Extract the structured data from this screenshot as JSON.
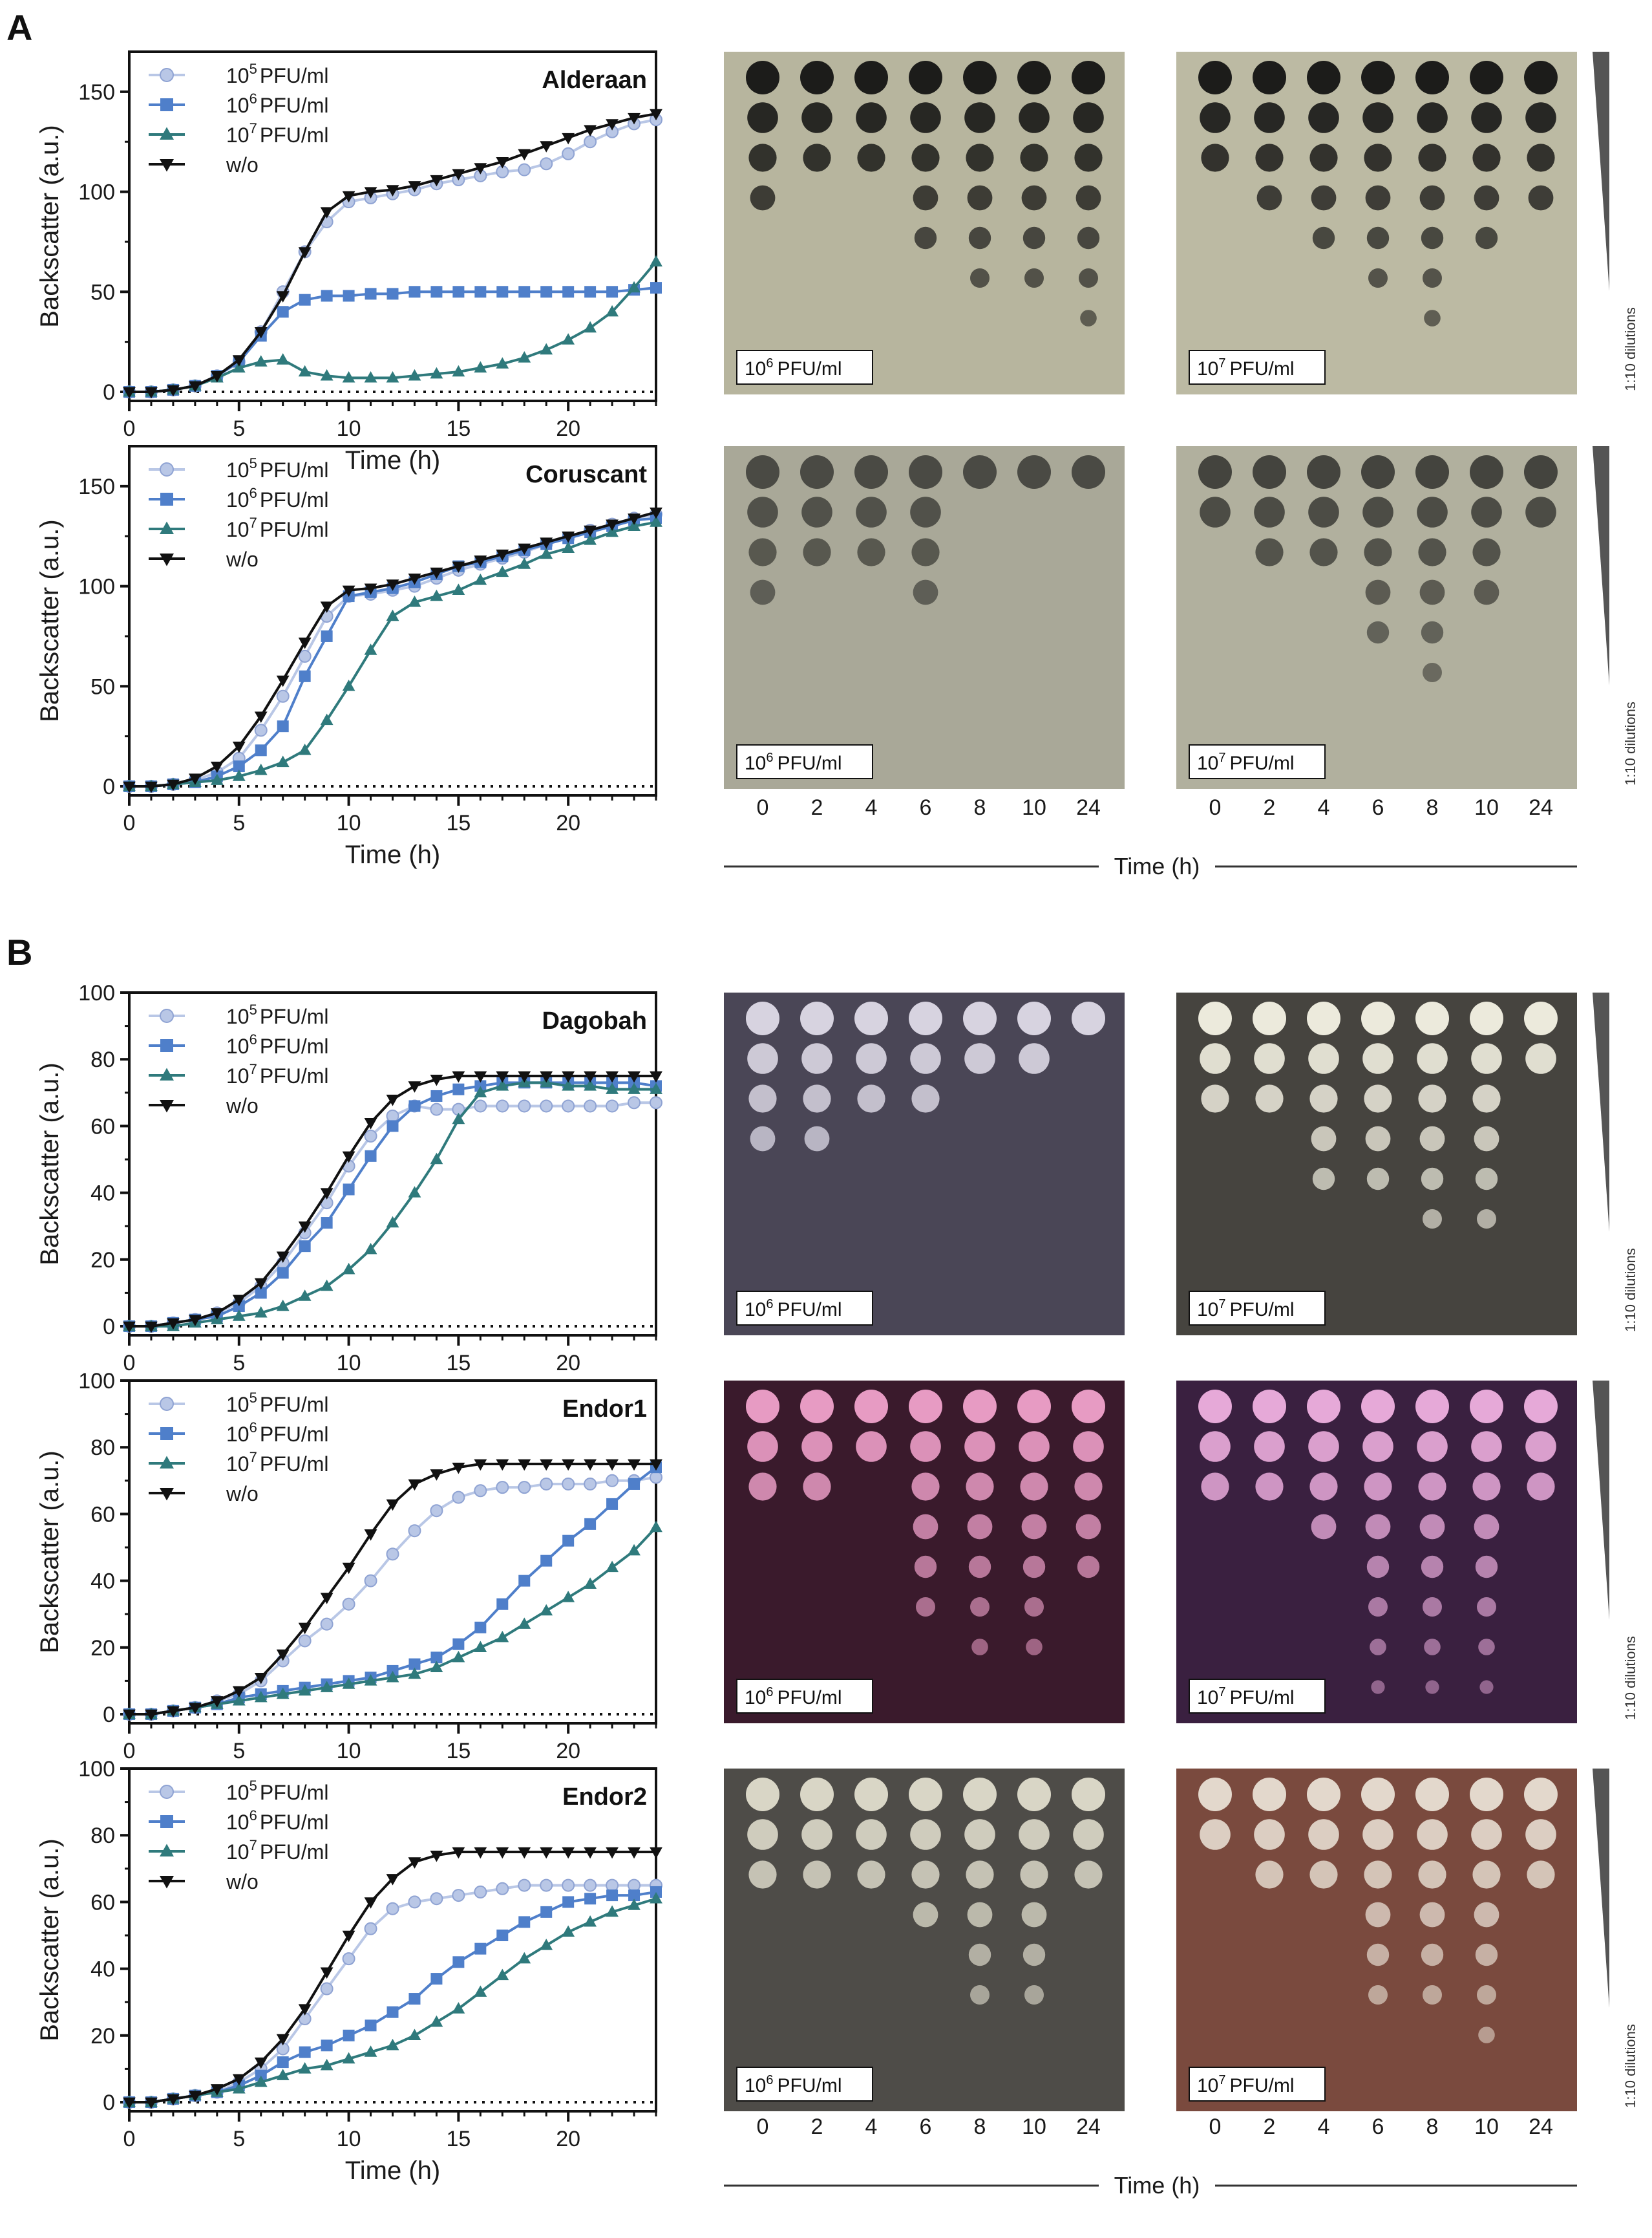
{
  "figure": {
    "panels": [
      "A",
      "B"
    ],
    "plate_time_ticks": [
      "0",
      "2",
      "4",
      "6",
      "8",
      "10",
      "24"
    ],
    "plate_time_label": "Time (h)",
    "dilution_label": "1:10 dilutions",
    "plate_caption_prefix": [
      "10",
      "10"
    ],
    "plate_caption_exponents": [
      "6",
      "7"
    ],
    "plate_caption_suffix": "PFU/ml",
    "plates": [
      {
        "panel": "A",
        "row": 0,
        "titer": "10^6 PFU/ml",
        "agar": "yellowish-gray",
        "spots": "dark plaques",
        "bg": "#b7b59e",
        "spot": "#1c1c1a"
      },
      {
        "panel": "A",
        "row": 0,
        "titer": "10^7 PFU/ml",
        "agar": "yellowish-gray",
        "spots": "dark plaques",
        "bg": "#bcbaa3",
        "spot": "#1c1c1a"
      },
      {
        "panel": "A",
        "row": 1,
        "titer": "10^6 PFU/ml",
        "agar": "gray",
        "spots": "faint plaques",
        "bg": "#a9a898",
        "spot": "#4a4a44"
      },
      {
        "panel": "A",
        "row": 1,
        "titer": "10^7 PFU/ml",
        "agar": "gray",
        "spots": "faint plaques",
        "bg": "#b1b09e",
        "spot": "#44443e"
      },
      {
        "panel": "B",
        "row": 0,
        "titer": "10^6 PFU/ml",
        "agar": "dark purple-gray",
        "spots": "light plaques",
        "bg": "#4a4656",
        "spot": "#d7d3e0"
      },
      {
        "panel": "B",
        "row": 0,
        "titer": "10^7 PFU/ml",
        "agar": "dark gray",
        "spots": "light plaques",
        "bg": "#46443f",
        "spot": "#eceadc"
      },
      {
        "panel": "B",
        "row": 1,
        "titer": "10^6 PFU/ml",
        "agar": "dark red-purple",
        "spots": "pink plaques",
        "bg": "#3a1a2c",
        "spot": "#e79bc3"
      },
      {
        "panel": "B",
        "row": 1,
        "titer": "10^7 PFU/ml",
        "agar": "dark purple",
        "spots": "pink plaques",
        "bg": "#3a2040",
        "spot": "#e6a9d8"
      },
      {
        "panel": "B",
        "row": 2,
        "titer": "10^6 PFU/ml",
        "agar": "dark gray",
        "spots": "light plaques",
        "bg": "#4e4c48",
        "spot": "#d9d6c6"
      },
      {
        "panel": "B",
        "row": 2,
        "titer": "10^7 PFU/ml",
        "agar": "reddish-brown",
        "spots": "light plaques",
        "bg": "#7a4a3e",
        "spot": "#e3d8cc"
      }
    ],
    "colors": {
      "s1": "#b9c7e6",
      "s2": "#4f7fca",
      "s3": "#2f7a7c",
      "s4": "#111111"
    },
    "markers": {
      "s1": "circle",
      "s2": "square",
      "s3": "triangle-up",
      "s4": "triangle-down"
    }
  },
  "chart_data": [
    {
      "type": "line",
      "panel": "A",
      "title": "Alderaan",
      "xlabel": "Time (h)",
      "ylabel": "Backscatter (a.u.)",
      "xlim": [
        0,
        24
      ],
      "ylim": [
        0,
        170
      ],
      "xticks": [
        0,
        5,
        10,
        15,
        20
      ],
      "yticks": [
        0,
        50,
        100,
        150
      ],
      "legend_position": "top-left",
      "baseline": "dotted at 0",
      "x": [
        0,
        1,
        2,
        3,
        4,
        5,
        6,
        7,
        8,
        9,
        10,
        11,
        12,
        13,
        14,
        15,
        16,
        17,
        18,
        19,
        20,
        21,
        22,
        23,
        24
      ],
      "series": [
        {
          "name": "10^5 PFU/ml",
          "key": "s1",
          "values": [
            0,
            0,
            1,
            3,
            8,
            15,
            30,
            50,
            70,
            85,
            95,
            97,
            99,
            101,
            104,
            106,
            108,
            110,
            111,
            114,
            119,
            125,
            130,
            134,
            136
          ]
        },
        {
          "name": "10^6 PFU/ml",
          "key": "s2",
          "values": [
            0,
            0,
            1,
            3,
            8,
            15,
            28,
            40,
            46,
            48,
            48,
            49,
            49,
            50,
            50,
            50,
            50,
            50,
            50,
            50,
            50,
            50,
            50,
            51,
            52
          ]
        },
        {
          "name": "10^7 PFU/ml",
          "key": "s3",
          "values": [
            0,
            0,
            1,
            3,
            7,
            12,
            15,
            16,
            10,
            8,
            7,
            7,
            7,
            8,
            9,
            10,
            12,
            14,
            17,
            21,
            26,
            32,
            40,
            52,
            65
          ]
        },
        {
          "name": "w/o",
          "key": "s4",
          "values": [
            0,
            0,
            1,
            3,
            8,
            16,
            30,
            48,
            70,
            90,
            98,
            100,
            101,
            103,
            106,
            109,
            112,
            115,
            119,
            123,
            127,
            131,
            134,
            137,
            139
          ]
        }
      ]
    },
    {
      "type": "line",
      "panel": "A",
      "title": "Coruscant",
      "xlabel": "Time (h)",
      "ylabel": "Backscatter (a.u.)",
      "xlim": [
        0,
        24
      ],
      "ylim": [
        0,
        170
      ],
      "xticks": [
        0,
        5,
        10,
        15,
        20
      ],
      "yticks": [
        0,
        50,
        100,
        150
      ],
      "legend_position": "top-left",
      "baseline": "dotted at 0",
      "x": [
        0,
        1,
        2,
        3,
        4,
        5,
        6,
        7,
        8,
        9,
        10,
        11,
        12,
        13,
        14,
        15,
        16,
        17,
        18,
        19,
        20,
        21,
        22,
        23,
        24
      ],
      "series": [
        {
          "name": "10^5 PFU/ml",
          "key": "s1",
          "values": [
            0,
            0,
            1,
            3,
            7,
            14,
            28,
            45,
            65,
            85,
            95,
            96,
            98,
            100,
            104,
            108,
            111,
            114,
            117,
            121,
            124,
            128,
            131,
            134,
            136
          ]
        },
        {
          "name": "10^6 PFU/ml",
          "key": "s2",
          "values": [
            0,
            0,
            1,
            2,
            5,
            10,
            18,
            30,
            55,
            75,
            95,
            97,
            99,
            102,
            106,
            110,
            112,
            115,
            118,
            121,
            124,
            127,
            130,
            133,
            134
          ]
        },
        {
          "name": "10^7 PFU/ml",
          "key": "s3",
          "values": [
            0,
            0,
            1,
            2,
            3,
            5,
            8,
            12,
            18,
            33,
            50,
            68,
            85,
            92,
            95,
            98,
            103,
            107,
            111,
            116,
            119,
            123,
            127,
            130,
            132
          ]
        },
        {
          "name": "w/o",
          "key": "s4",
          "values": [
            0,
            0,
            1,
            4,
            10,
            20,
            35,
            53,
            72,
            90,
            98,
            99,
            101,
            104,
            107,
            110,
            113,
            116,
            119,
            122,
            125,
            128,
            131,
            134,
            137
          ]
        }
      ]
    },
    {
      "type": "line",
      "panel": "B",
      "title": "Dagobah",
      "xlabel": "",
      "ylabel": "Backscatter (a.u.)",
      "xlim": [
        0,
        24
      ],
      "ylim": [
        0,
        100
      ],
      "xticks": [
        0,
        5,
        10,
        15,
        20
      ],
      "yticks": [
        0,
        20,
        40,
        60,
        80,
        100
      ],
      "legend_position": "top-left",
      "baseline": "dotted at 0",
      "x": [
        0,
        1,
        2,
        3,
        4,
        5,
        6,
        7,
        8,
        9,
        10,
        11,
        12,
        13,
        14,
        15,
        16,
        17,
        18,
        19,
        20,
        21,
        22,
        23,
        24
      ],
      "series": [
        {
          "name": "10^5 PFU/ml",
          "key": "s1",
          "values": [
            0,
            0,
            1,
            2,
            4,
            7,
            12,
            19,
            28,
            37,
            48,
            57,
            63,
            66,
            65,
            65,
            66,
            66,
            66,
            66,
            66,
            66,
            66,
            67,
            67
          ]
        },
        {
          "name": "10^6 PFU/ml",
          "key": "s2",
          "values": [
            0,
            0,
            1,
            2,
            3,
            6,
            10,
            16,
            24,
            31,
            41,
            51,
            60,
            66,
            69,
            71,
            72,
            73,
            73,
            73,
            73,
            73,
            73,
            73,
            72
          ]
        },
        {
          "name": "10^7 PFU/ml",
          "key": "s3",
          "values": [
            0,
            0,
            0,
            1,
            2,
            3,
            4,
            6,
            9,
            12,
            17,
            23,
            31,
            40,
            50,
            62,
            70,
            72,
            73,
            73,
            72,
            72,
            71,
            71,
            71
          ]
        },
        {
          "name": "w/o",
          "key": "s4",
          "values": [
            0,
            0,
            1,
            2,
            4,
            8,
            13,
            21,
            30,
            40,
            51,
            61,
            68,
            72,
            74,
            75,
            75,
            75,
            75,
            75,
            75,
            75,
            75,
            75,
            75
          ]
        }
      ]
    },
    {
      "type": "line",
      "panel": "B",
      "title": "Endor1",
      "xlabel": "",
      "ylabel": "Backscatter (a.u.)",
      "xlim": [
        0,
        24
      ],
      "ylim": [
        0,
        100
      ],
      "xticks": [
        0,
        5,
        10,
        15,
        20
      ],
      "yticks": [
        0,
        20,
        40,
        60,
        80,
        100
      ],
      "legend_position": "top-left",
      "baseline": "dotted at 0",
      "x": [
        0,
        1,
        2,
        3,
        4,
        5,
        6,
        7,
        8,
        9,
        10,
        11,
        12,
        13,
        14,
        15,
        16,
        17,
        18,
        19,
        20,
        21,
        22,
        23,
        24
      ],
      "series": [
        {
          "name": "10^5 PFU/ml",
          "key": "s1",
          "values": [
            0,
            0,
            1,
            2,
            4,
            6,
            10,
            16,
            22,
            27,
            33,
            40,
            48,
            55,
            61,
            65,
            67,
            68,
            68,
            69,
            69,
            69,
            70,
            70,
            71
          ]
        },
        {
          "name": "10^6 PFU/ml",
          "key": "s2",
          "values": [
            0,
            0,
            1,
            2,
            3,
            5,
            6,
            7,
            8,
            9,
            10,
            11,
            13,
            15,
            17,
            21,
            26,
            33,
            40,
            46,
            52,
            57,
            63,
            69,
            74
          ]
        },
        {
          "name": "10^7 PFU/ml",
          "key": "s3",
          "values": [
            0,
            0,
            1,
            2,
            3,
            4,
            5,
            6,
            7,
            8,
            9,
            10,
            11,
            12,
            14,
            17,
            20,
            23,
            27,
            31,
            35,
            39,
            44,
            49,
            56
          ]
        },
        {
          "name": "w/o",
          "key": "s4",
          "values": [
            0,
            0,
            1,
            2,
            4,
            7,
            11,
            18,
            26,
            35,
            44,
            54,
            63,
            69,
            72,
            74,
            75,
            75,
            75,
            75,
            75,
            75,
            75,
            75,
            75
          ]
        }
      ]
    },
    {
      "type": "line",
      "panel": "B",
      "title": "Endor2",
      "xlabel": "Time (h)",
      "ylabel": "Backscatter (a.u.)",
      "xlim": [
        0,
        24
      ],
      "ylim": [
        0,
        100
      ],
      "xticks": [
        0,
        5,
        10,
        15,
        20
      ],
      "yticks": [
        0,
        20,
        40,
        60,
        80,
        100
      ],
      "legend_position": "top-left",
      "baseline": "dotted at 0",
      "x": [
        0,
        1,
        2,
        3,
        4,
        5,
        6,
        7,
        8,
        9,
        10,
        11,
        12,
        13,
        14,
        15,
        16,
        17,
        18,
        19,
        20,
        21,
        22,
        23,
        24
      ],
      "series": [
        {
          "name": "10^5 PFU/ml",
          "key": "s1",
          "values": [
            0,
            0,
            1,
            2,
            3,
            6,
            10,
            16,
            25,
            34,
            43,
            52,
            58,
            60,
            61,
            62,
            63,
            64,
            65,
            65,
            65,
            65,
            65,
            65,
            65
          ]
        },
        {
          "name": "10^6 PFU/ml",
          "key": "s2",
          "values": [
            0,
            0,
            1,
            2,
            3,
            5,
            8,
            12,
            15,
            17,
            20,
            23,
            27,
            31,
            37,
            42,
            46,
            50,
            54,
            57,
            60,
            61,
            62,
            62,
            63
          ]
        },
        {
          "name": "10^7 PFU/ml",
          "key": "s3",
          "values": [
            0,
            0,
            1,
            2,
            3,
            4,
            6,
            8,
            10,
            11,
            13,
            15,
            17,
            20,
            24,
            28,
            33,
            38,
            43,
            47,
            51,
            54,
            57,
            59,
            61
          ]
        },
        {
          "name": "w/o",
          "key": "s4",
          "values": [
            0,
            0,
            1,
            2,
            4,
            7,
            12,
            19,
            28,
            39,
            50,
            60,
            67,
            72,
            74,
            75,
            75,
            75,
            75,
            75,
            75,
            75,
            75,
            75,
            75
          ]
        }
      ]
    }
  ]
}
